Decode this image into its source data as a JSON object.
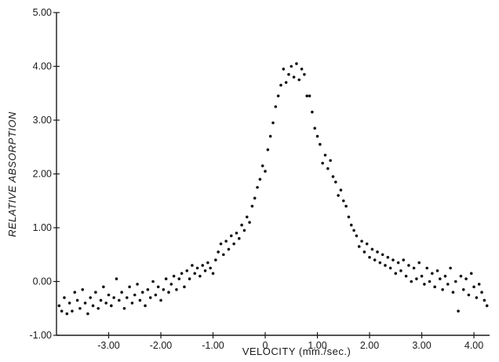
{
  "chart_data": {
    "type": "scatter",
    "title": "",
    "xlabel": "VELOCITY (mm./sec.)",
    "ylabel": "RELATIVE ABSORPTION",
    "xlim": [
      -4.0,
      4.3
    ],
    "ylim": [
      -1.0,
      5.0
    ],
    "grid": false,
    "x_ticks": [
      {
        "value": -3.0,
        "label": "-3.00"
      },
      {
        "value": -2.0,
        "label": "-2.00"
      },
      {
        "value": -1.0,
        "label": "-1.00"
      },
      {
        "value": 0.0,
        "label": "0"
      },
      {
        "value": 1.0,
        "label": "1.00"
      },
      {
        "value": 2.0,
        "label": "2.00"
      },
      {
        "value": 3.0,
        "label": "3.00"
      },
      {
        "value": 4.0,
        "label": "4.00"
      }
    ],
    "y_ticks": [
      {
        "value": -1.0,
        "label": "-1.00"
      },
      {
        "value": 0.0,
        "label": "0.00"
      },
      {
        "value": 1.0,
        "label": "1.00"
      },
      {
        "value": 2.0,
        "label": "2.00"
      },
      {
        "value": 3.0,
        "label": "3.00"
      },
      {
        "value": 4.0,
        "label": "4.00"
      },
      {
        "value": 5.0,
        "label": "5.00"
      }
    ],
    "series": [
      {
        "points": [
          [
            -3.95,
            -0.45
          ],
          [
            -3.9,
            -0.55
          ],
          [
            -3.85,
            -0.3
          ],
          [
            -3.8,
            -0.6
          ],
          [
            -3.75,
            -0.4
          ],
          [
            -3.7,
            -0.55
          ],
          [
            -3.65,
            -0.2
          ],
          [
            -3.6,
            -0.35
          ],
          [
            -3.55,
            -0.5
          ],
          [
            -3.5,
            -0.15
          ],
          [
            -3.45,
            -0.4
          ],
          [
            -3.4,
            -0.6
          ],
          [
            -3.35,
            -0.3
          ],
          [
            -3.3,
            -0.45
          ],
          [
            -3.25,
            -0.2
          ],
          [
            -3.2,
            -0.5
          ],
          [
            -3.15,
            -0.35
          ],
          [
            -3.1,
            -0.1
          ],
          [
            -3.05,
            -0.4
          ],
          [
            -3.0,
            -0.25
          ],
          [
            -2.95,
            -0.45
          ],
          [
            -2.9,
            -0.3
          ],
          [
            -2.85,
            0.05
          ],
          [
            -2.8,
            -0.35
          ],
          [
            -2.75,
            -0.2
          ],
          [
            -2.7,
            -0.5
          ],
          [
            -2.65,
            -0.3
          ],
          [
            -2.6,
            -0.1
          ],
          [
            -2.55,
            -0.4
          ],
          [
            -2.5,
            -0.25
          ],
          [
            -2.45,
            -0.05
          ],
          [
            -2.4,
            -0.35
          ],
          [
            -2.35,
            -0.2
          ],
          [
            -2.3,
            -0.45
          ],
          [
            -2.25,
            -0.15
          ],
          [
            -2.2,
            -0.3
          ],
          [
            -2.15,
            0.0
          ],
          [
            -2.1,
            -0.25
          ],
          [
            -2.05,
            -0.1
          ],
          [
            -2.0,
            -0.35
          ],
          [
            -1.95,
            -0.15
          ],
          [
            -1.9,
            0.05
          ],
          [
            -1.85,
            -0.2
          ],
          [
            -1.8,
            -0.05
          ],
          [
            -1.75,
            0.1
          ],
          [
            -1.7,
            -0.15
          ],
          [
            -1.65,
            0.05
          ],
          [
            -1.6,
            0.15
          ],
          [
            -1.55,
            -0.1
          ],
          [
            -1.5,
            0.2
          ],
          [
            -1.45,
            0.05
          ],
          [
            -1.4,
            0.3
          ],
          [
            -1.35,
            0.15
          ],
          [
            -1.3,
            0.25
          ],
          [
            -1.25,
            0.1
          ],
          [
            -1.2,
            0.3
          ],
          [
            -1.15,
            0.2
          ],
          [
            -1.1,
            0.35
          ],
          [
            -1.05,
            0.25
          ],
          [
            -1.0,
            0.15
          ],
          [
            -0.95,
            0.4
          ],
          [
            -0.9,
            0.55
          ],
          [
            -0.85,
            0.7
          ],
          [
            -0.8,
            0.5
          ],
          [
            -0.75,
            0.75
          ],
          [
            -0.7,
            0.6
          ],
          [
            -0.65,
            0.85
          ],
          [
            -0.6,
            0.7
          ],
          [
            -0.55,
            0.9
          ],
          [
            -0.5,
            0.8
          ],
          [
            -0.45,
            1.05
          ],
          [
            -0.4,
            0.95
          ],
          [
            -0.35,
            1.2
          ],
          [
            -0.3,
            1.1
          ],
          [
            -0.25,
            1.4
          ],
          [
            -0.2,
            1.55
          ],
          [
            -0.15,
            1.75
          ],
          [
            -0.1,
            1.9
          ],
          [
            -0.05,
            2.15
          ],
          [
            0.0,
            2.05
          ],
          [
            0.05,
            2.45
          ],
          [
            0.1,
            2.7
          ],
          [
            0.15,
            2.95
          ],
          [
            0.2,
            3.25
          ],
          [
            0.25,
            3.45
          ],
          [
            0.3,
            3.65
          ],
          [
            0.35,
            3.95
          ],
          [
            0.4,
            3.7
          ],
          [
            0.45,
            3.85
          ],
          [
            0.5,
            4.0
          ],
          [
            0.55,
            3.8
          ],
          [
            0.6,
            4.05
          ],
          [
            0.65,
            3.75
          ],
          [
            0.7,
            3.95
          ],
          [
            0.75,
            3.85
          ],
          [
            0.8,
            3.45
          ],
          [
            0.85,
            3.45
          ],
          [
            0.9,
            3.15
          ],
          [
            0.95,
            2.85
          ],
          [
            1.0,
            2.7
          ],
          [
            1.05,
            2.55
          ],
          [
            1.1,
            2.2
          ],
          [
            1.15,
            2.35
          ],
          [
            1.2,
            2.1
          ],
          [
            1.25,
            2.25
          ],
          [
            1.3,
            1.95
          ],
          [
            1.35,
            1.85
          ],
          [
            1.4,
            1.6
          ],
          [
            1.45,
            1.7
          ],
          [
            1.5,
            1.5
          ],
          [
            1.55,
            1.4
          ],
          [
            1.6,
            1.2
          ],
          [
            1.65,
            1.05
          ],
          [
            1.7,
            0.95
          ],
          [
            1.75,
            0.85
          ],
          [
            1.8,
            0.65
          ],
          [
            1.85,
            0.75
          ],
          [
            1.9,
            0.55
          ],
          [
            1.95,
            0.7
          ],
          [
            2.0,
            0.45
          ],
          [
            2.05,
            0.6
          ],
          [
            2.1,
            0.4
          ],
          [
            2.15,
            0.55
          ],
          [
            2.2,
            0.35
          ],
          [
            2.25,
            0.5
          ],
          [
            2.3,
            0.3
          ],
          [
            2.35,
            0.45
          ],
          [
            2.4,
            0.25
          ],
          [
            2.45,
            0.4
          ],
          [
            2.5,
            0.15
          ],
          [
            2.55,
            0.35
          ],
          [
            2.6,
            0.2
          ],
          [
            2.65,
            0.4
          ],
          [
            2.7,
            0.1
          ],
          [
            2.75,
            0.3
          ],
          [
            2.8,
            0.0
          ],
          [
            2.85,
            0.25
          ],
          [
            2.9,
            0.05
          ],
          [
            2.95,
            0.35
          ],
          [
            3.0,
            0.1
          ],
          [
            3.05,
            -0.05
          ],
          [
            3.1,
            0.25
          ],
          [
            3.15,
            0.0
          ],
          [
            3.2,
            0.15
          ],
          [
            3.25,
            -0.1
          ],
          [
            3.3,
            0.2
          ],
          [
            3.35,
            0.05
          ],
          [
            3.4,
            -0.15
          ],
          [
            3.45,
            0.1
          ],
          [
            3.5,
            -0.05
          ],
          [
            3.55,
            0.25
          ],
          [
            3.6,
            -0.2
          ],
          [
            3.65,
            0.0
          ],
          [
            3.7,
            -0.55
          ],
          [
            3.75,
            0.1
          ],
          [
            3.8,
            -0.15
          ],
          [
            3.85,
            0.05
          ],
          [
            3.9,
            -0.25
          ],
          [
            3.95,
            0.15
          ],
          [
            4.0,
            -0.1
          ],
          [
            4.05,
            -0.3
          ],
          [
            4.1,
            -0.05
          ],
          [
            4.15,
            -0.2
          ],
          [
            4.2,
            -0.35
          ],
          [
            4.25,
            -0.45
          ]
        ]
      }
    ]
  }
}
